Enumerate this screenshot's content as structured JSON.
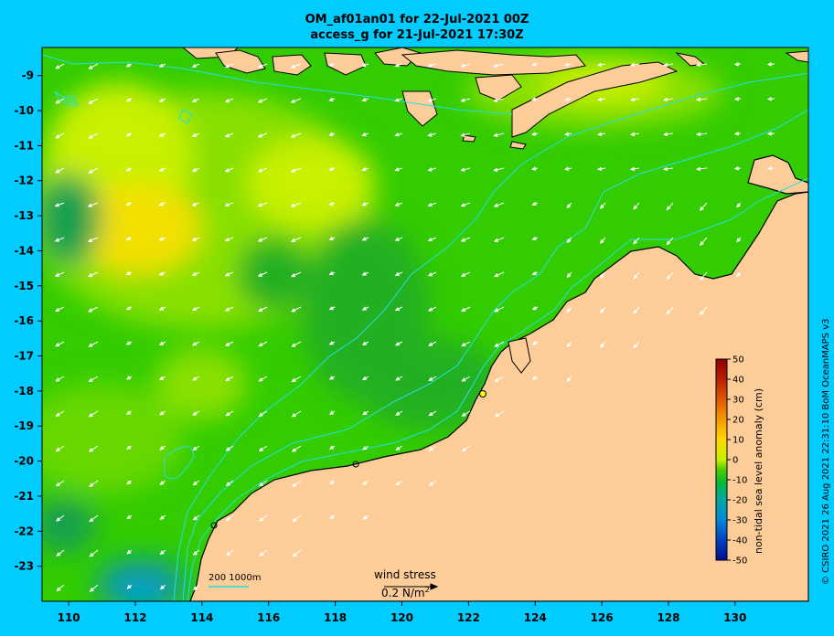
{
  "title_line1": "OM_af01an01 for 22-Jul-2021 00Z",
  "title_line2": "access_g for 21-Jul-2021 17:30Z",
  "copyright": "© CSIRO 2021  26 Aug 2021 22:31:10 BoM OceanMAPS v3",
  "axes": {
    "x_ticks": [
      "110",
      "112",
      "114",
      "116",
      "118",
      "120",
      "122",
      "124",
      "126",
      "128",
      "130"
    ],
    "x_values": [
      110,
      112,
      114,
      116,
      118,
      120,
      122,
      124,
      126,
      128,
      130
    ],
    "y_ticks": [
      "-9",
      "-10",
      "-11",
      "-12",
      "-13",
      "-14",
      "-15",
      "-16",
      "-17",
      "-18",
      "-19",
      "-20",
      "-21",
      "-22",
      "-23"
    ],
    "y_values": [
      -9,
      -10,
      -11,
      -12,
      -13,
      -14,
      -15,
      -16,
      -17,
      -18,
      -19,
      -20,
      -21,
      -22,
      -23
    ],
    "lon_range": [
      109,
      132
    ],
    "lat_range": [
      -24,
      -8.2
    ]
  },
  "colorbar": {
    "title": "non-tidal sea level anomaly (cm)",
    "ticks": [
      "50",
      "40",
      "30",
      "20",
      "10",
      "0",
      "-10",
      "-20",
      "-30",
      "-40",
      "-50"
    ],
    "values": [
      50,
      40,
      30,
      20,
      10,
      0,
      -10,
      -20,
      -30,
      -40,
      -50
    ],
    "colors": [
      "#8b0000",
      "#b82000",
      "#dd5a00",
      "#f29a00",
      "#ffd700",
      "#c8f000",
      "#4ccc00",
      "#00b840",
      "#00a8a0",
      "#0088d8",
      "#0040c0",
      "#00108a"
    ]
  },
  "scale_label": "200  1000m",
  "wind_stress": {
    "label": "wind stress",
    "ref_value": "0.2 N/m",
    "ref_exp": "2"
  },
  "colors": {
    "land": "#fccc99",
    "contour": "#22e0e0",
    "background": "#00ccff"
  }
}
